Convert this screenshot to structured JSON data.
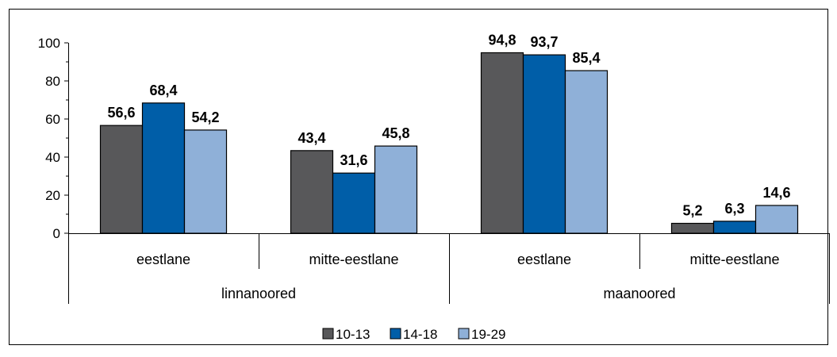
{
  "chart_data": {
    "type": "bar",
    "title": "",
    "xlabel": "",
    "ylabel": "",
    "ylim": [
      0,
      100
    ],
    "yticks": [
      0,
      20,
      40,
      60,
      80,
      100
    ],
    "groups": [
      {
        "label": "linnanoored",
        "categories": [
          "eestlane",
          "mitte-eestlane"
        ]
      },
      {
        "label": "maanoored",
        "categories": [
          "eestlane",
          "mitte-eestlane"
        ]
      }
    ],
    "categories": [
      "eestlane",
      "mitte-eestlane",
      "eestlane",
      "mitte-eestlane"
    ],
    "series": [
      {
        "name": "10-13",
        "color": "#58585a",
        "values": [
          56.6,
          43.4,
          94.8,
          5.2
        ],
        "labels": [
          "56,6",
          "43,4",
          "94,8",
          "5,2"
        ]
      },
      {
        "name": "14-18",
        "color": "#005ea8",
        "values": [
          68.4,
          31.6,
          93.7,
          6.3
        ],
        "labels": [
          "68,4",
          "31,6",
          "93,7",
          "6,3"
        ]
      },
      {
        "name": "19-29",
        "color": "#8fb0d8",
        "values": [
          54.2,
          45.8,
          85.4,
          14.6
        ],
        "labels": [
          "54,2",
          "45,8",
          "85,4",
          "14,6"
        ]
      }
    ],
    "grid": false,
    "legend_position": "bottom"
  }
}
